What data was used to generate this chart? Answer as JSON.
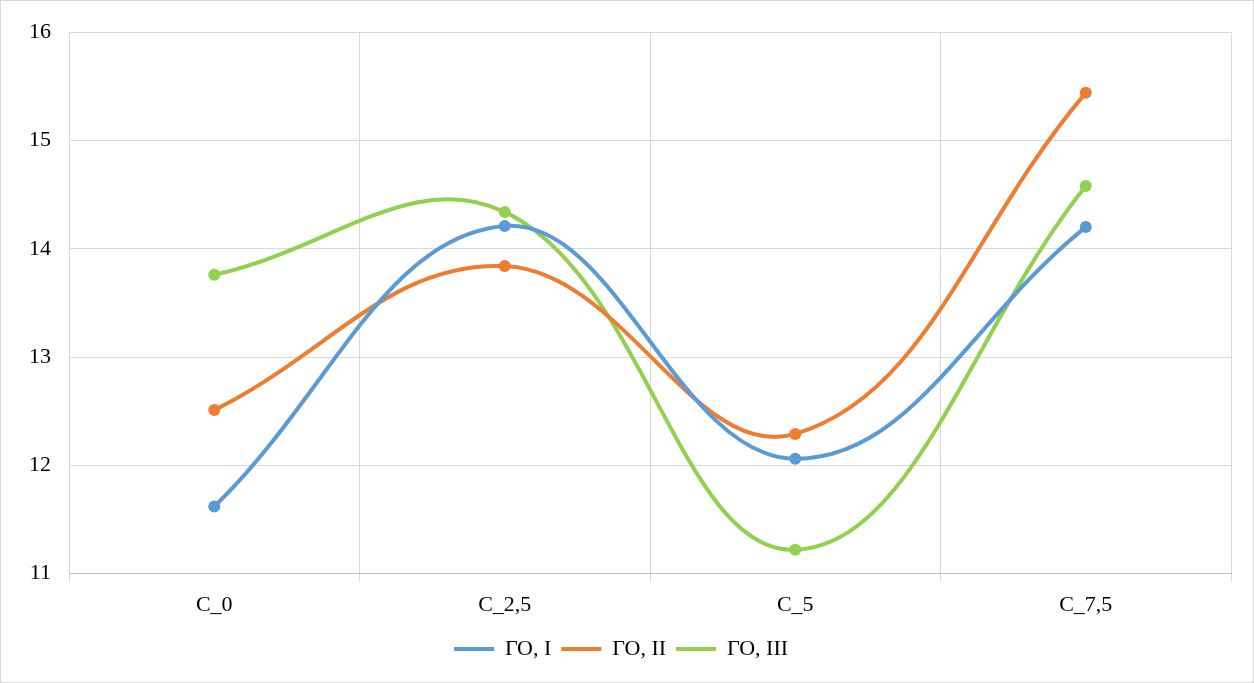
{
  "chart_data": {
    "type": "line",
    "categories": [
      "C_0",
      "C_2,5",
      "C_5",
      "C_7,5"
    ],
    "series": [
      {
        "name": "ГО, I",
        "color": "#5b9bd5",
        "values": [
          11.62,
          14.21,
          12.06,
          14.2
        ]
      },
      {
        "name": "ГО, II",
        "color": "#ed7d31",
        "values": [
          12.51,
          13.84,
          12.29,
          15.44
        ]
      },
      {
        "name": "ГО, III",
        "color": "#92d050",
        "values": [
          13.76,
          14.34,
          11.22,
          14.58
        ]
      }
    ],
    "ylim": [
      11,
      16
    ],
    "yticks": [
      11,
      12,
      13,
      14,
      15,
      16
    ],
    "grid": true,
    "legend": "bottom",
    "marker": "circle",
    "line_style": "solid"
  }
}
